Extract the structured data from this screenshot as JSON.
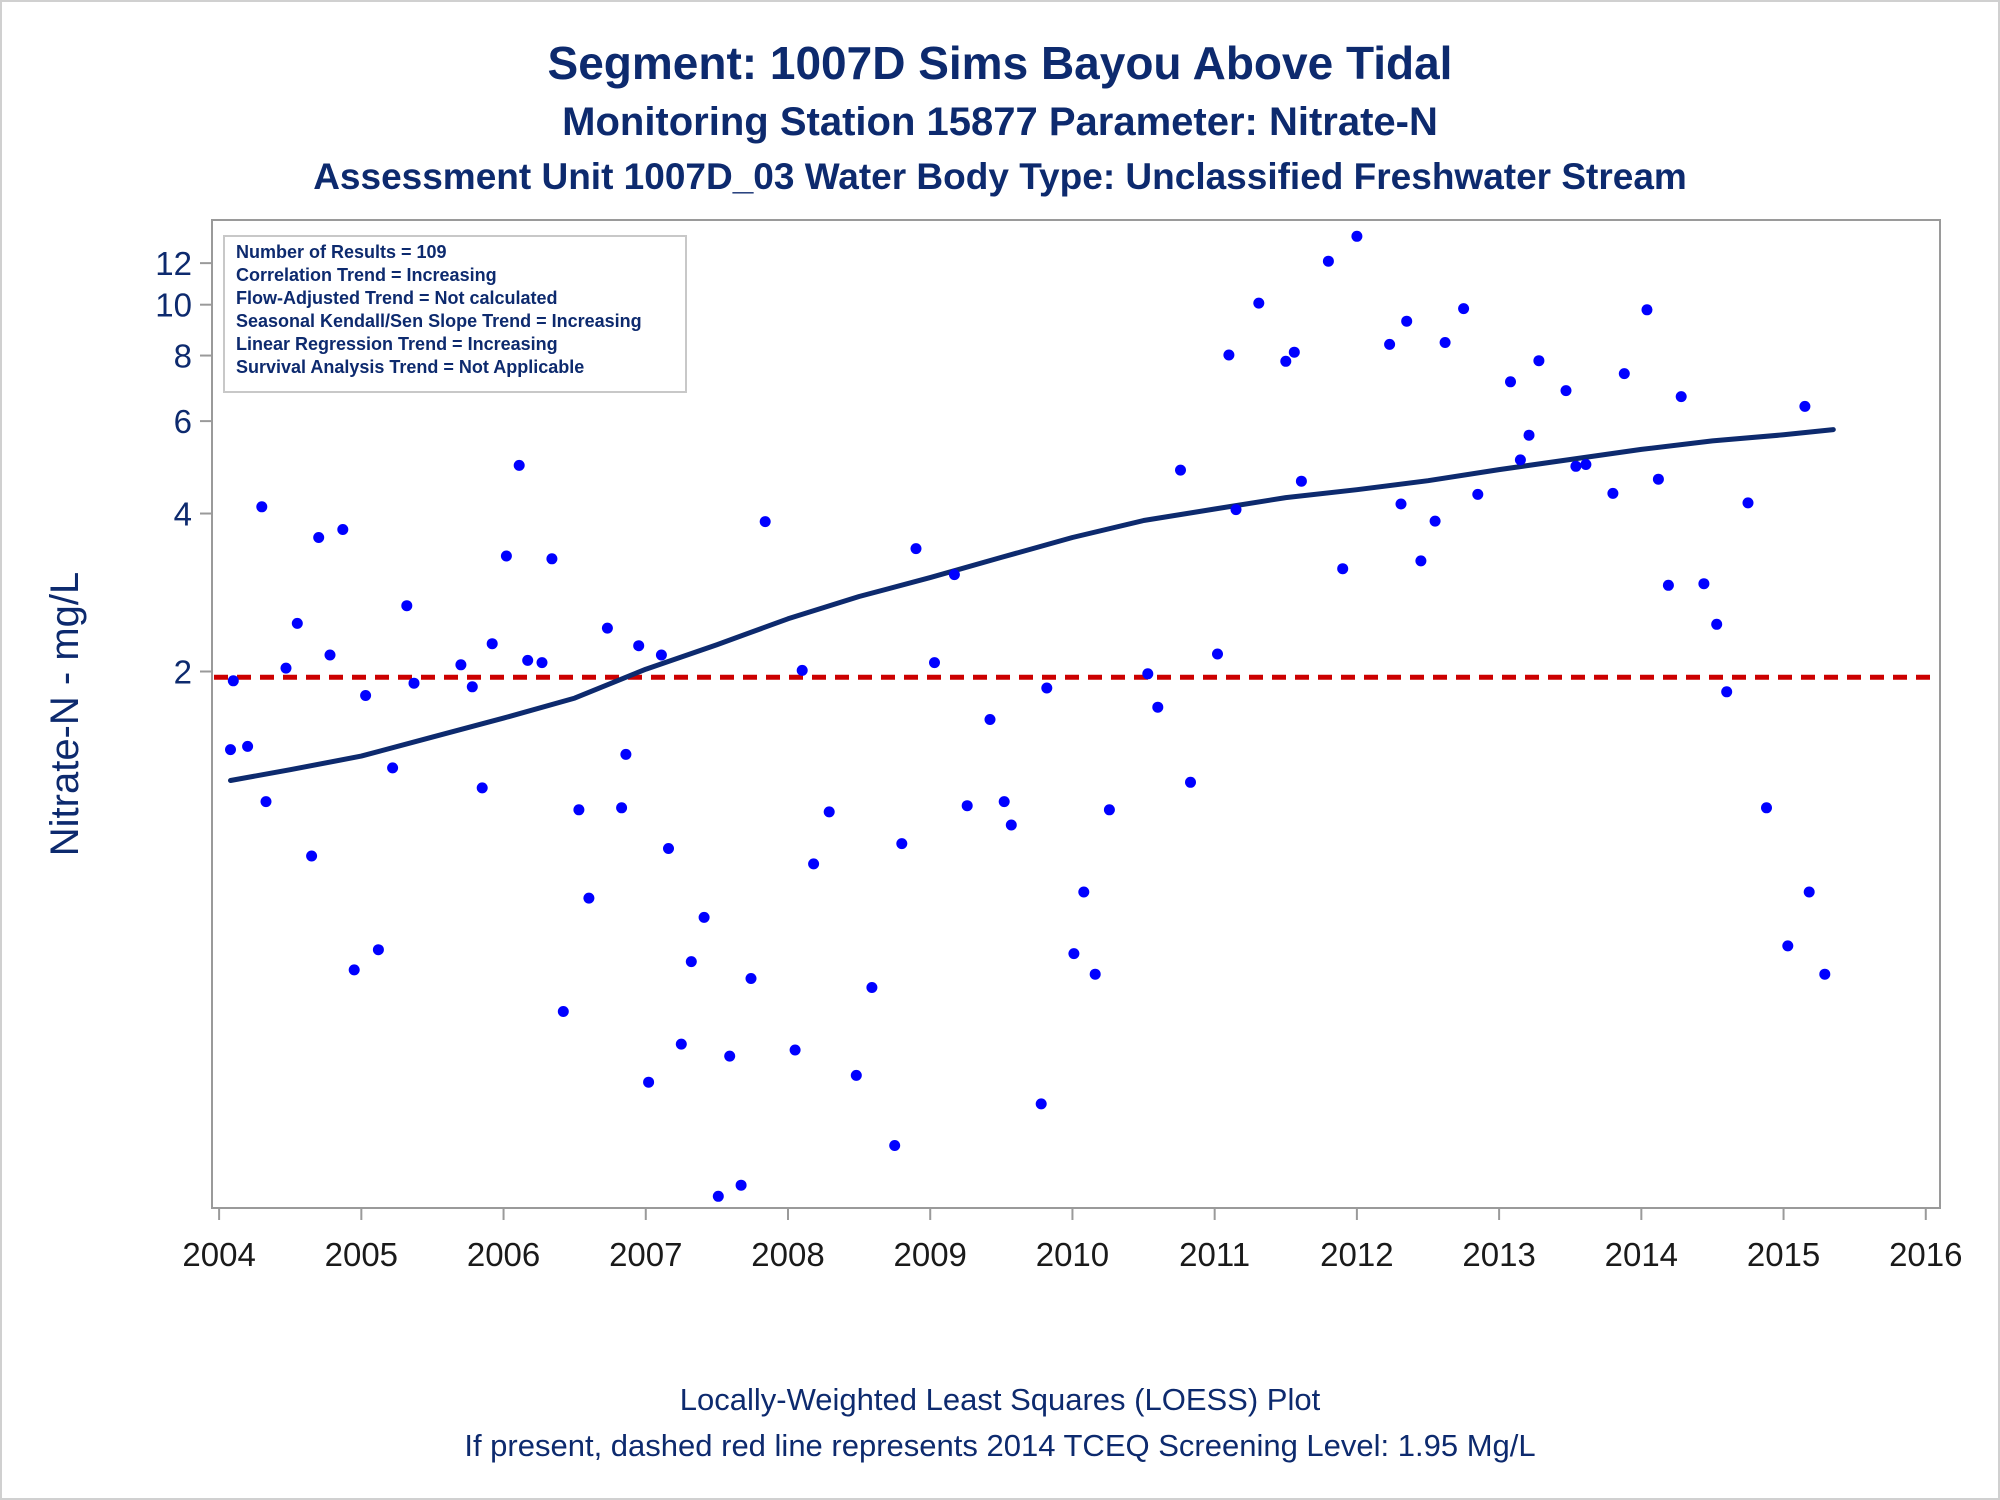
{
  "titles": {
    "line1": "Segment: 1007D  Sims Bayou Above Tidal",
    "line2": "Monitoring Station 15877 Parameter: Nitrate-N",
    "line3": "Assessment Unit 1007D_03   Water Body Type: Unclassified Freshwater Stream"
  },
  "footer": {
    "line1": "Locally-Weighted Least Squares (LOESS) Plot",
    "line2": "If present, dashed red line represents 2014 TCEQ Screening Level: 1.95 Mg/L"
  },
  "legend_box": {
    "lines": [
      "Number of Results = 109",
      "Correlation Trend = Increasing",
      "Flow-Adjusted Trend = Not calculated",
      "Seasonal Kendall/Sen Slope Trend = Increasing",
      "Linear Regression Trend = Increasing",
      "Survival Analysis Trend = Not Applicable"
    ]
  },
  "colors": {
    "title": "#0d2a6e",
    "points": "#0000ff",
    "loess": "#0d2a6e",
    "screening": "#cc0000",
    "axis": "#9a9a9a"
  },
  "chart_data": {
    "type": "scatter",
    "ylabel": "Nitrate-N - mg/L",
    "xlabel": "",
    "x_scale": "linear (year)",
    "y_scale": "log",
    "xlim": [
      2003.95,
      2016.1
    ],
    "ylim": [
      0.19,
      14.5
    ],
    "x_ticks": [
      2004,
      2005,
      2006,
      2007,
      2008,
      2009,
      2010,
      2011,
      2012,
      2013,
      2014,
      2015,
      2016
    ],
    "y_ticks": [
      2,
      4,
      6,
      8,
      10,
      12
    ],
    "screening_level": 1.95,
    "points": [
      [
        2004.08,
        1.42
      ],
      [
        2004.1,
        1.92
      ],
      [
        2004.2,
        1.44
      ],
      [
        2004.3,
        4.12
      ],
      [
        2004.33,
        1.13
      ],
      [
        2004.47,
        2.03
      ],
      [
        2004.55,
        2.47
      ],
      [
        2004.65,
        0.89
      ],
      [
        2004.7,
        3.6
      ],
      [
        2004.78,
        2.15
      ],
      [
        2004.87,
        3.73
      ],
      [
        2004.95,
        0.54
      ],
      [
        2005.03,
        1.8
      ],
      [
        2005.12,
        0.59
      ],
      [
        2005.22,
        1.31
      ],
      [
        2005.32,
        2.67
      ],
      [
        2005.37,
        1.9
      ],
      [
        2005.7,
        2.06
      ],
      [
        2005.78,
        1.87
      ],
      [
        2005.85,
        1.2
      ],
      [
        2005.92,
        2.26
      ],
      [
        2006.02,
        3.32
      ],
      [
        2006.11,
        4.94
      ],
      [
        2006.17,
        2.1
      ],
      [
        2006.27,
        2.08
      ],
      [
        2006.34,
        3.28
      ],
      [
        2006.42,
        0.45
      ],
      [
        2006.53,
        1.09
      ],
      [
        2006.6,
        0.74
      ],
      [
        2006.73,
        2.42
      ],
      [
        2006.83,
        1.1
      ],
      [
        2006.86,
        1.39
      ],
      [
        2006.95,
        2.24
      ],
      [
        2007.02,
        0.33
      ],
      [
        2007.11,
        2.15
      ],
      [
        2007.16,
        0.92
      ],
      [
        2007.25,
        0.39
      ],
      [
        2007.32,
        0.56
      ],
      [
        2007.41,
        0.68
      ],
      [
        2007.51,
        0.2
      ],
      [
        2007.59,
        0.37
      ],
      [
        2007.67,
        0.21
      ],
      [
        2007.74,
        0.52
      ],
      [
        2007.84,
        3.86
      ],
      [
        2008.05,
        0.38
      ],
      [
        2008.1,
        2.01
      ],
      [
        2008.18,
        0.86
      ],
      [
        2008.29,
        1.08
      ],
      [
        2008.48,
        0.34
      ],
      [
        2008.59,
        0.5
      ],
      [
        2008.75,
        0.25
      ],
      [
        2008.8,
        0.94
      ],
      [
        2008.9,
        3.43
      ],
      [
        2009.03,
        2.08
      ],
      [
        2009.17,
        3.06
      ],
      [
        2009.26,
        1.11
      ],
      [
        2009.42,
        1.62
      ],
      [
        2009.52,
        1.13
      ],
      [
        2009.57,
        1.02
      ],
      [
        2009.78,
        0.3
      ],
      [
        2009.82,
        1.86
      ],
      [
        2010.01,
        0.58
      ],
      [
        2010.08,
        0.76
      ],
      [
        2010.16,
        0.53
      ],
      [
        2010.26,
        1.09
      ],
      [
        2010.53,
        1.98
      ],
      [
        2010.6,
        1.71
      ],
      [
        2010.76,
        4.84
      ],
      [
        2010.83,
        1.23
      ],
      [
        2011.02,
        2.16
      ],
      [
        2011.1,
        8.02
      ],
      [
        2011.15,
        4.07
      ],
      [
        2011.31,
        10.07
      ],
      [
        2011.5,
        7.8
      ],
      [
        2011.56,
        8.12
      ],
      [
        2011.61,
        4.61
      ],
      [
        2011.8,
        12.1
      ],
      [
        2011.9,
        3.14
      ],
      [
        2012.0,
        13.5
      ],
      [
        2012.23,
        8.4
      ],
      [
        2012.31,
        4.17
      ],
      [
        2012.35,
        9.3
      ],
      [
        2012.45,
        3.25
      ],
      [
        2012.55,
        3.87
      ],
      [
        2012.62,
        8.47
      ],
      [
        2012.75,
        9.83
      ],
      [
        2012.85,
        4.35
      ],
      [
        2013.08,
        7.13
      ],
      [
        2013.15,
        5.06
      ],
      [
        2013.21,
        5.64
      ],
      [
        2013.28,
        7.82
      ],
      [
        2013.47,
        6.86
      ],
      [
        2013.54,
        4.92
      ],
      [
        2013.61,
        4.96
      ],
      [
        2013.8,
        4.37
      ],
      [
        2013.88,
        7.39
      ],
      [
        2014.04,
        9.78
      ],
      [
        2014.12,
        4.65
      ],
      [
        2014.19,
        2.92
      ],
      [
        2014.28,
        6.68
      ],
      [
        2014.44,
        2.94
      ],
      [
        2014.53,
        2.46
      ],
      [
        2014.6,
        1.83
      ],
      [
        2014.75,
        4.19
      ],
      [
        2014.88,
        1.1
      ],
      [
        2015.03,
        0.6
      ],
      [
        2015.18,
        0.76
      ],
      [
        2015.15,
        6.4
      ],
      [
        2015.29,
        0.53
      ]
    ],
    "loess": [
      [
        2004.08,
        1.24
      ],
      [
        2004.5,
        1.3
      ],
      [
        2005.0,
        1.38
      ],
      [
        2005.5,
        1.5
      ],
      [
        2006.0,
        1.63
      ],
      [
        2006.5,
        1.78
      ],
      [
        2007.0,
        2.02
      ],
      [
        2007.5,
        2.25
      ],
      [
        2008.0,
        2.52
      ],
      [
        2008.5,
        2.78
      ],
      [
        2009.0,
        3.02
      ],
      [
        2009.5,
        3.3
      ],
      [
        2010.0,
        3.6
      ],
      [
        2010.5,
        3.88
      ],
      [
        2011.0,
        4.08
      ],
      [
        2011.5,
        4.29
      ],
      [
        2012.0,
        4.44
      ],
      [
        2012.5,
        4.62
      ],
      [
        2013.0,
        4.85
      ],
      [
        2013.5,
        5.07
      ],
      [
        2014.0,
        5.3
      ],
      [
        2014.5,
        5.5
      ],
      [
        2015.0,
        5.65
      ],
      [
        2015.35,
        5.78
      ]
    ]
  }
}
